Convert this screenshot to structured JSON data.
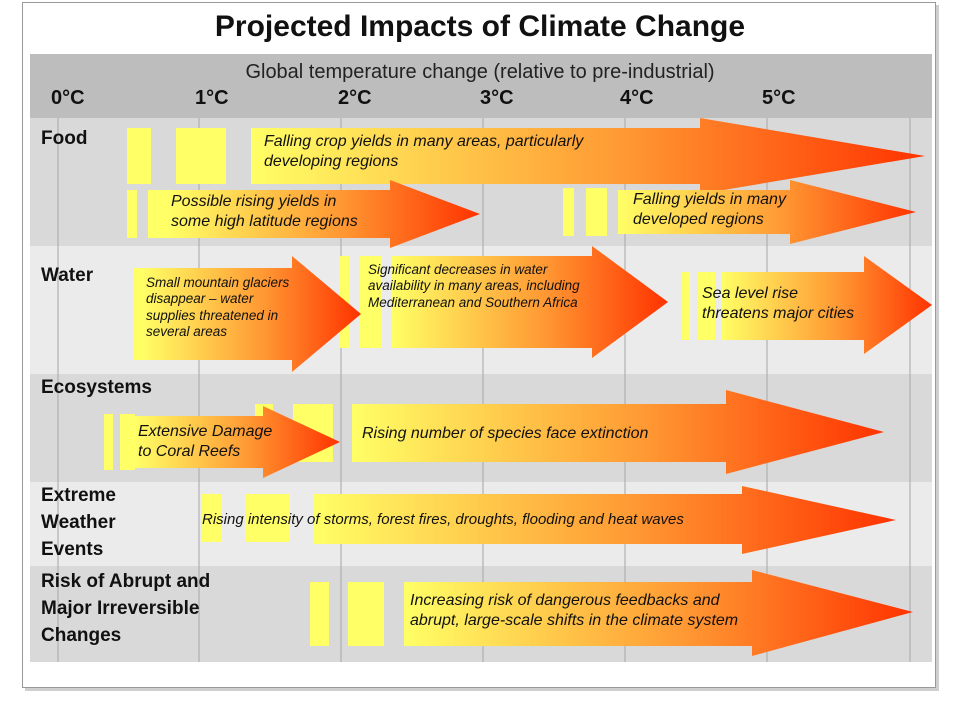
{
  "title": "Projected Impacts of Climate Change",
  "header": {
    "subtitle": "Global temperature change (relative to pre-industrial)",
    "ticks": [
      "0°C",
      "1°C",
      "2°C",
      "3°C",
      "4°C",
      "5°C"
    ]
  },
  "rows": [
    {
      "label_lines": [
        "Food"
      ]
    },
    {
      "label_lines": [
        "Water"
      ]
    },
    {
      "label_lines": [
        "Ecosystems"
      ]
    },
    {
      "label_lines": [
        "Extreme",
        "Weather",
        "Events"
      ]
    },
    {
      "label_lines": [
        "Risk of Abrupt and",
        "Major Irreversible",
        "Changes"
      ]
    }
  ],
  "impacts": [
    {
      "text_lines": [
        "Falling crop yields in many areas, particularly",
        "developing regions"
      ]
    },
    {
      "text_lines": [
        "Possible rising yields in",
        "some high latitude regions"
      ]
    },
    {
      "text_lines": [
        "Falling yields in many",
        "developed regions"
      ]
    },
    {
      "text_lines": [
        "Small mountain glaciers",
        "disappear  – water",
        "supplies threatened in",
        "several areas"
      ]
    },
    {
      "text_lines": [
        "Significant decreases in water",
        "availability in many areas, including",
        "Mediterranean and Southern Africa"
      ]
    },
    {
      "text_lines": [
        "Sea level rise",
        "threatens major cities"
      ]
    },
    {
      "text_lines": [
        "Extensive Damage",
        "to Coral Reefs"
      ]
    },
    {
      "text_lines": [
        "Rising number of species face extinction"
      ]
    },
    {
      "text_lines": [
        "Rising intensity of storms, forest fires, droughts, flooding and heat waves"
      ]
    },
    {
      "text_lines": [
        "Increasing risk of dangerous feedbacks and",
        "abrupt, large-scale shifts in the climate system"
      ]
    }
  ],
  "colors": {
    "header_band": "#bdbdbd",
    "row_dark": "#d9d9d9",
    "row_light": "#ebebeb",
    "gridline": "#a6a6a6",
    "bar_yellow": "#ffff66",
    "arrow_start": "#ffff66",
    "arrow_mid": "#ff9933",
    "arrow_end": "#ff3300"
  }
}
